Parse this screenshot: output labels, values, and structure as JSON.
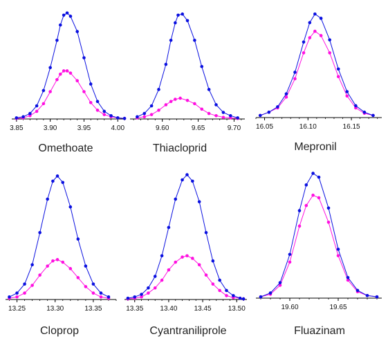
{
  "colors": {
    "series_a": "#0a10e0",
    "series_b": "#ff10e0",
    "axis": "#000000"
  },
  "chart_data": [
    {
      "type": "line",
      "title": "Omethoate",
      "xlim": [
        3.843,
        4.012
      ],
      "x_ticks": [
        "3.85",
        "3.90",
        "3.95",
        "4.00"
      ],
      "ylim": [
        0,
        1.0
      ],
      "series": [
        {
          "values": [
            [
              3.85,
              0.01
            ],
            [
              3.86,
              0.02
            ],
            [
              3.87,
              0.05
            ],
            [
              3.88,
              0.12
            ],
            [
              3.89,
              0.26
            ],
            [
              3.9,
              0.47
            ],
            [
              3.91,
              0.72
            ],
            [
              3.915,
              0.86
            ],
            [
              3.92,
              0.95
            ],
            [
              3.925,
              0.97
            ],
            [
              3.93,
              0.94
            ],
            [
              3.94,
              0.8
            ],
            [
              3.95,
              0.56
            ],
            [
              3.96,
              0.32
            ],
            [
              3.97,
              0.16
            ],
            [
              3.98,
              0.07
            ],
            [
              3.99,
              0.03
            ],
            [
              4.0,
              0.01
            ],
            [
              4.01,
              0.005
            ]
          ]
        },
        {
          "values": [
            [
              3.85,
              0.005
            ],
            [
              3.86,
              0.01
            ],
            [
              3.87,
              0.03
            ],
            [
              3.88,
              0.07
            ],
            [
              3.89,
              0.14
            ],
            [
              3.9,
              0.25
            ],
            [
              3.91,
              0.36
            ],
            [
              3.915,
              0.41
            ],
            [
              3.92,
              0.44
            ],
            [
              3.925,
              0.44
            ],
            [
              3.93,
              0.42
            ],
            [
              3.94,
              0.35
            ],
            [
              3.95,
              0.25
            ],
            [
              3.96,
              0.15
            ],
            [
              3.97,
              0.08
            ],
            [
              3.98,
              0.04
            ],
            [
              3.99,
              0.02
            ],
            [
              4.0,
              0.01
            ],
            [
              4.01,
              0.005
            ]
          ]
        }
      ]
    },
    {
      "type": "line",
      "title": "Thiacloprid",
      "xlim": [
        9.555,
        9.715
      ],
      "x_ticks": [
        "9.60",
        "9.65",
        "9.70"
      ],
      "ylim": [
        0,
        1.0
      ],
      "series": [
        {
          "values": [
            [
              9.565,
              0.02
            ],
            [
              9.575,
              0.05
            ],
            [
              9.585,
              0.12
            ],
            [
              9.595,
              0.27
            ],
            [
              9.605,
              0.5
            ],
            [
              9.612,
              0.72
            ],
            [
              9.618,
              0.88
            ],
            [
              9.622,
              0.95
            ],
            [
              9.628,
              0.96
            ],
            [
              9.635,
              0.9
            ],
            [
              9.645,
              0.72
            ],
            [
              9.655,
              0.48
            ],
            [
              9.665,
              0.27
            ],
            [
              9.675,
              0.13
            ],
            [
              9.685,
              0.06
            ],
            [
              9.695,
              0.03
            ],
            [
              9.705,
              0.01
            ]
          ]
        },
        {
          "values": [
            [
              9.565,
              0.01
            ],
            [
              9.575,
              0.02
            ],
            [
              9.585,
              0.04
            ],
            [
              9.595,
              0.08
            ],
            [
              9.605,
              0.13
            ],
            [
              9.612,
              0.16
            ],
            [
              9.618,
              0.18
            ],
            [
              9.625,
              0.19
            ],
            [
              9.635,
              0.17
            ],
            [
              9.645,
              0.14
            ],
            [
              9.655,
              0.09
            ],
            [
              9.665,
              0.05
            ],
            [
              9.675,
              0.03
            ],
            [
              9.685,
              0.015
            ],
            [
              9.695,
              0.01
            ],
            [
              9.705,
              0.005
            ]
          ]
        }
      ]
    },
    {
      "type": "line",
      "title": "Mepronil",
      "xlim": [
        16.04,
        16.185
      ],
      "x_ticks": [
        "16.05",
        "16.10",
        "16.15"
      ],
      "ylim": [
        0,
        1.0
      ],
      "series": [
        {
          "values": [
            [
              16.045,
              0.02
            ],
            [
              16.055,
              0.05
            ],
            [
              16.065,
              0.1
            ],
            [
              16.075,
              0.22
            ],
            [
              16.085,
              0.42
            ],
            [
              16.095,
              0.7
            ],
            [
              16.102,
              0.88
            ],
            [
              16.108,
              0.96
            ],
            [
              16.115,
              0.92
            ],
            [
              16.125,
              0.72
            ],
            [
              16.135,
              0.45
            ],
            [
              16.145,
              0.24
            ],
            [
              16.155,
              0.11
            ],
            [
              16.165,
              0.05
            ],
            [
              16.175,
              0.02
            ]
          ]
        },
        {
          "values": [
            [
              16.045,
              0.02
            ],
            [
              16.055,
              0.05
            ],
            [
              16.065,
              0.09
            ],
            [
              16.075,
              0.19
            ],
            [
              16.085,
              0.36
            ],
            [
              16.095,
              0.6
            ],
            [
              16.102,
              0.74
            ],
            [
              16.108,
              0.8
            ],
            [
              16.115,
              0.76
            ],
            [
              16.125,
              0.6
            ],
            [
              16.135,
              0.38
            ],
            [
              16.145,
              0.2
            ],
            [
              16.155,
              0.09
            ],
            [
              16.165,
              0.04
            ],
            [
              16.175,
              0.02
            ]
          ]
        }
      ]
    },
    {
      "type": "line",
      "title": "Cloprop",
      "xlim": [
        13.235,
        13.38
      ],
      "x_ticks": [
        "13.25",
        "13.30",
        "13.35"
      ],
      "ylim": [
        0,
        1.0
      ],
      "series": [
        {
          "values": [
            [
              13.24,
              0.02
            ],
            [
              13.25,
              0.05
            ],
            [
              13.26,
              0.12
            ],
            [
              13.27,
              0.27
            ],
            [
              13.28,
              0.52
            ],
            [
              13.29,
              0.78
            ],
            [
              13.297,
              0.92
            ],
            [
              13.303,
              0.96
            ],
            [
              13.31,
              0.91
            ],
            [
              13.32,
              0.72
            ],
            [
              13.33,
              0.47
            ],
            [
              13.34,
              0.26
            ],
            [
              13.35,
              0.12
            ],
            [
              13.36,
              0.05
            ],
            [
              13.37,
              0.02
            ]
          ]
        },
        {
          "values": [
            [
              13.24,
              0.01
            ],
            [
              13.25,
              0.02
            ],
            [
              13.26,
              0.05
            ],
            [
              13.27,
              0.11
            ],
            [
              13.28,
              0.19
            ],
            [
              13.29,
              0.26
            ],
            [
              13.297,
              0.3
            ],
            [
              13.303,
              0.31
            ],
            [
              13.31,
              0.29
            ],
            [
              13.32,
              0.24
            ],
            [
              13.33,
              0.17
            ],
            [
              13.34,
              0.1
            ],
            [
              13.35,
              0.05
            ],
            [
              13.36,
              0.02
            ],
            [
              13.37,
              0.01
            ]
          ]
        }
      ]
    },
    {
      "type": "line",
      "title": "Cyantraniliprole",
      "xlim": [
        13.335,
        13.515
      ],
      "x_ticks": [
        "13.35",
        "13.40",
        "13.45",
        "13.50"
      ],
      "ylim": [
        0,
        1.0
      ],
      "series": [
        {
          "values": [
            [
              13.34,
              0.01
            ],
            [
              13.35,
              0.02
            ],
            [
              13.36,
              0.04
            ],
            [
              13.37,
              0.09
            ],
            [
              13.38,
              0.18
            ],
            [
              13.39,
              0.34
            ],
            [
              13.4,
              0.56
            ],
            [
              13.41,
              0.78
            ],
            [
              13.42,
              0.93
            ],
            [
              13.427,
              0.97
            ],
            [
              13.435,
              0.92
            ],
            [
              13.445,
              0.76
            ],
            [
              13.455,
              0.52
            ],
            [
              13.465,
              0.3
            ],
            [
              13.475,
              0.15
            ],
            [
              13.485,
              0.07
            ],
            [
              13.495,
              0.03
            ],
            [
              13.505,
              0.01
            ],
            [
              13.51,
              0.005
            ]
          ]
        },
        {
          "values": [
            [
              13.34,
              0.005
            ],
            [
              13.35,
              0.01
            ],
            [
              13.36,
              0.02
            ],
            [
              13.37,
              0.05
            ],
            [
              13.38,
              0.09
            ],
            [
              13.39,
              0.15
            ],
            [
              13.4,
              0.23
            ],
            [
              13.41,
              0.29
            ],
            [
              13.42,
              0.33
            ],
            [
              13.427,
              0.34
            ],
            [
              13.435,
              0.32
            ],
            [
              13.445,
              0.27
            ],
            [
              13.455,
              0.19
            ],
            [
              13.465,
              0.12
            ],
            [
              13.475,
              0.07
            ],
            [
              13.485,
              0.03
            ],
            [
              13.495,
              0.015
            ],
            [
              13.505,
              0.01
            ],
            [
              13.51,
              0.005
            ]
          ]
        }
      ]
    },
    {
      "type": "line",
      "title": "Fluazinam",
      "xlim": [
        19.565,
        19.695
      ],
      "x_ticks": [
        "19.60",
        "19.65"
      ],
      "ylim": [
        0,
        1.0
      ],
      "series": [
        {
          "values": [
            [
              19.57,
              0.01
            ],
            [
              19.58,
              0.04
            ],
            [
              19.59,
              0.12
            ],
            [
              19.6,
              0.34
            ],
            [
              19.61,
              0.68
            ],
            [
              19.617,
              0.88
            ],
            [
              19.624,
              0.97
            ],
            [
              19.63,
              0.94
            ],
            [
              19.64,
              0.7
            ],
            [
              19.65,
              0.38
            ],
            [
              19.66,
              0.16
            ],
            [
              19.67,
              0.06
            ],
            [
              19.68,
              0.02
            ],
            [
              19.69,
              0.01
            ]
          ]
        },
        {
          "values": [
            [
              19.57,
              0.01
            ],
            [
              19.58,
              0.03
            ],
            [
              19.59,
              0.1
            ],
            [
              19.6,
              0.28
            ],
            [
              19.61,
              0.56
            ],
            [
              19.617,
              0.72
            ],
            [
              19.624,
              0.8
            ],
            [
              19.63,
              0.78
            ],
            [
              19.64,
              0.59
            ],
            [
              19.65,
              0.33
            ],
            [
              19.66,
              0.14
            ],
            [
              19.67,
              0.05
            ],
            [
              19.68,
              0.02
            ],
            [
              19.69,
              0.01
            ]
          ]
        }
      ]
    }
  ]
}
